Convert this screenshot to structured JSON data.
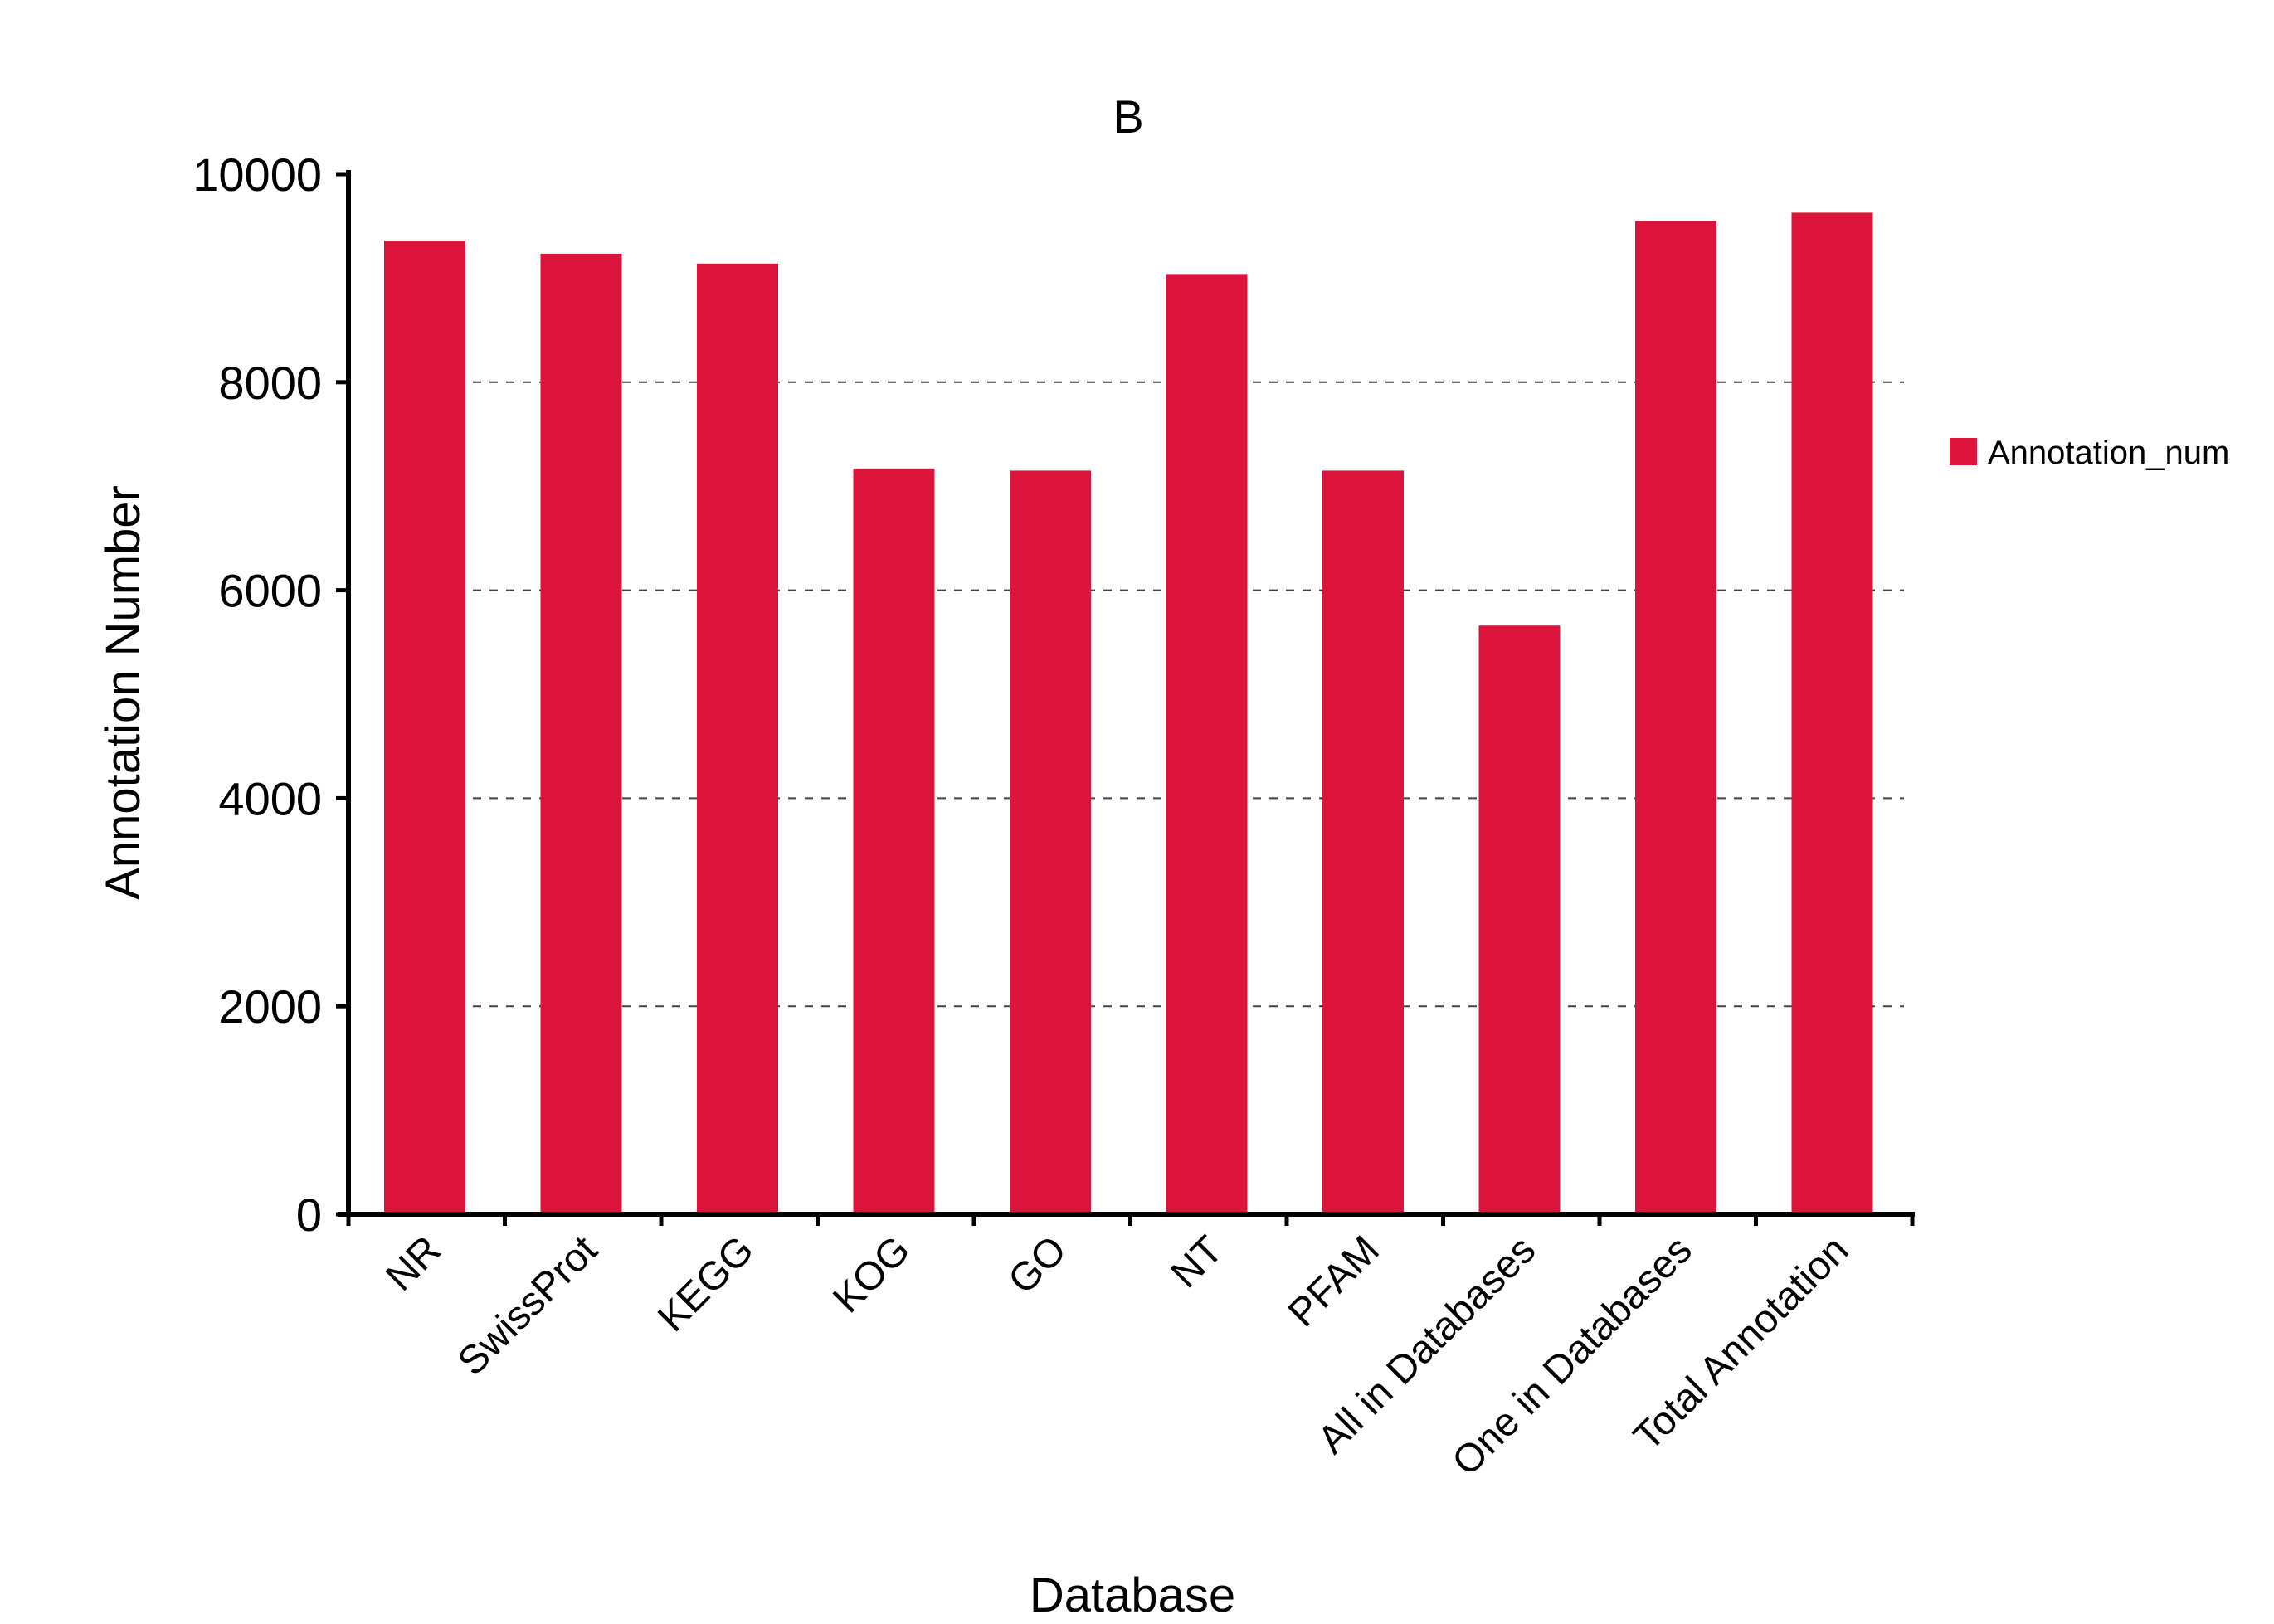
{
  "chart_data": {
    "type": "bar",
    "title": "B",
    "xlabel": "Database",
    "ylabel": "Annotation Number",
    "categories": [
      "NR",
      "SwissProt",
      "KEGG",
      "KOG",
      "GO",
      "NT",
      "PFAM",
      "All in Databases",
      "One in Databases",
      "Total Annotation"
    ],
    "series": [
      {
        "name": "Annotation_num",
        "values": [
          9360,
          9235,
          9140,
          7170,
          7150,
          9040,
          7150,
          5660,
          9550,
          9630
        ],
        "color": "#dc143c"
      }
    ],
    "ylim": [
      0,
      10000
    ],
    "yticks": [
      0,
      2000,
      4000,
      6000,
      8000,
      10000
    ],
    "ytick_labels": [
      "0",
      "2000",
      "4000",
      "6000",
      "8000",
      "10000"
    ],
    "grid": "horizontal-dashed",
    "legend_position": "right"
  }
}
